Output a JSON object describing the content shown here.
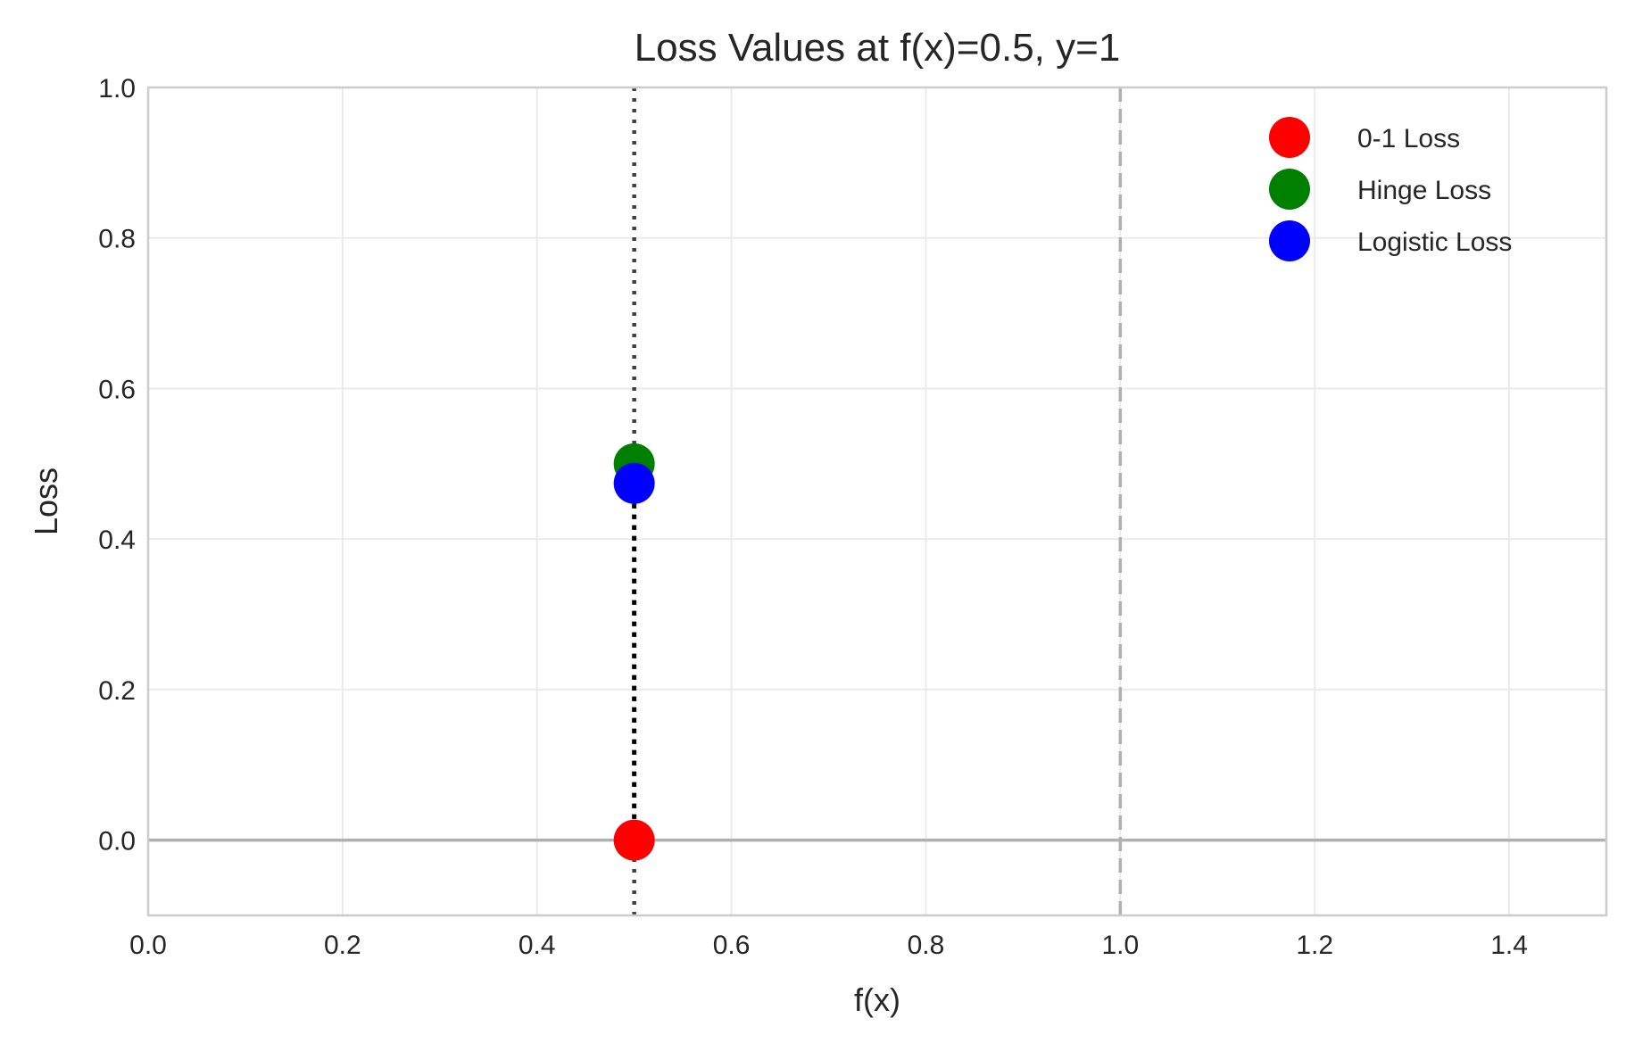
{
  "chart_data": {
    "type": "scatter",
    "title": "Loss Values at f(x)=0.5, y=1",
    "xlabel": "f(x)",
    "ylabel": "Loss",
    "xlim": [
      0.0,
      1.5
    ],
    "ylim": [
      -0.1,
      1.0
    ],
    "xticks": [
      0.0,
      0.2,
      0.4,
      0.6,
      0.8,
      1.0,
      1.2,
      1.4
    ],
    "xtick_labels": [
      "0.0",
      "0.2",
      "0.4",
      "0.6",
      "0.8",
      "1.0",
      "1.2",
      "1.4"
    ],
    "yticks": [
      0.0,
      0.2,
      0.4,
      0.6,
      0.8,
      1.0
    ],
    "ytick_labels": [
      "0.0",
      "0.2",
      "0.4",
      "0.6",
      "0.8",
      "1.0"
    ],
    "grid": true,
    "legend_position": "top-right",
    "series": [
      {
        "name": "0-1 Loss",
        "x": [
          0.5
        ],
        "y": [
          0.0
        ],
        "color": "#ff0000"
      },
      {
        "name": "Hinge Loss",
        "x": [
          0.5
        ],
        "y": [
          0.5
        ],
        "color": "#008000"
      },
      {
        "name": "Logistic Loss",
        "x": [
          0.5
        ],
        "y": [
          0.474
        ],
        "color": "#0000ff"
      }
    ],
    "reference_lines": [
      {
        "orientation": "vertical",
        "x": 0.5,
        "style": "dotted",
        "color": "#404040"
      },
      {
        "orientation": "vertical",
        "x": 1.0,
        "style": "dashed",
        "color": "#b0b0b0"
      },
      {
        "orientation": "horizontal",
        "y": 0.0,
        "style": "solid",
        "color": "#b0b0b0"
      }
    ],
    "connectors": [
      {
        "x": 0.5,
        "y_from": 0.0,
        "y_to": 0.474,
        "style": "dotted",
        "color": "#000000"
      }
    ]
  }
}
